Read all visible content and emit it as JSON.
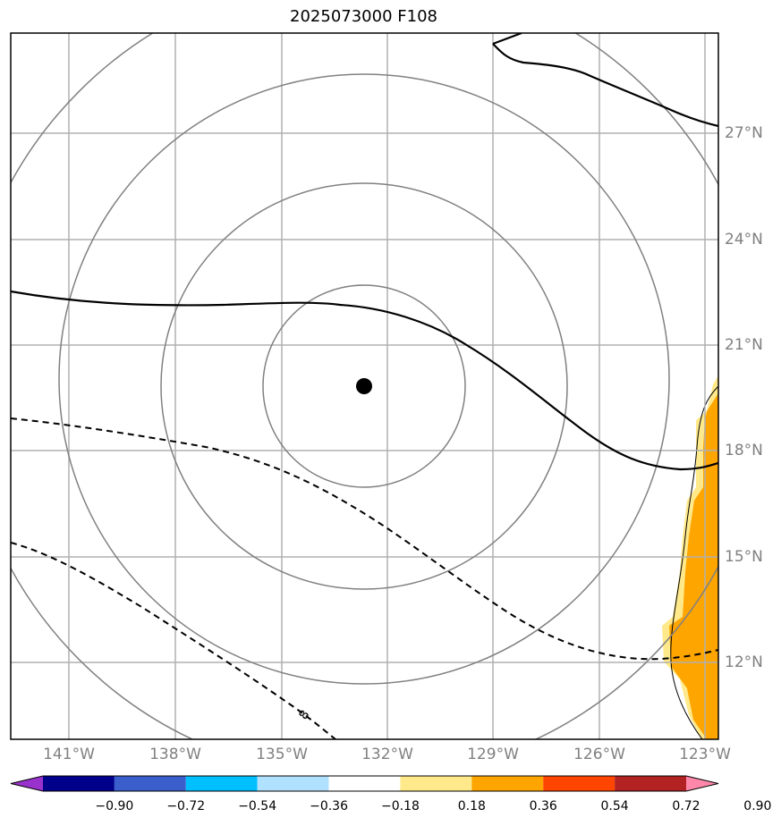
{
  "title": "2025073000 F108",
  "map": {
    "lon_range": [
      -142.5,
      -122.5
    ],
    "lat_range": [
      9.7,
      29.7
    ],
    "longitude_ticks": [
      "141°W",
      "138°W",
      "135°W",
      "132°W",
      "129°W",
      "126°W",
      "123°W"
    ],
    "latitude_ticks": [
      "27°N",
      "24°N",
      "21°N",
      "18°N",
      "15°N",
      "12°N"
    ],
    "storm_center": {
      "lon": -132.7,
      "lat": 19.9
    },
    "range_rings_count": 4,
    "contour_label": "8",
    "shaded_field": "positive anomaly 0.18–0.54 along eastern edge (east of 124°W, 10–20°N)",
    "colors": {
      "grid": "#b0b0b0",
      "rings": "#808080",
      "contour": "#000000",
      "shade_light": "#ffe98a",
      "shade_mid": "#ffa500",
      "center_marker": "#000000"
    }
  },
  "colorbar": {
    "tick_labels": [
      "−0.90",
      "−0.72",
      "−0.54",
      "−0.36",
      "−0.18",
      "0.18",
      "0.36",
      "0.54",
      "0.72",
      "0.90"
    ],
    "bins": [
      {
        "color": "#9932cc"
      },
      {
        "color": "#00008b"
      },
      {
        "color": "#3a5fcd"
      },
      {
        "color": "#00bfff"
      },
      {
        "color": "#b0e2ff"
      },
      {
        "color": "#ffffff"
      },
      {
        "color": "#ffe98a"
      },
      {
        "color": "#ffa500"
      },
      {
        "color": "#ff4500"
      },
      {
        "color": "#b22222"
      },
      {
        "color": "#ff88aa"
      }
    ]
  }
}
